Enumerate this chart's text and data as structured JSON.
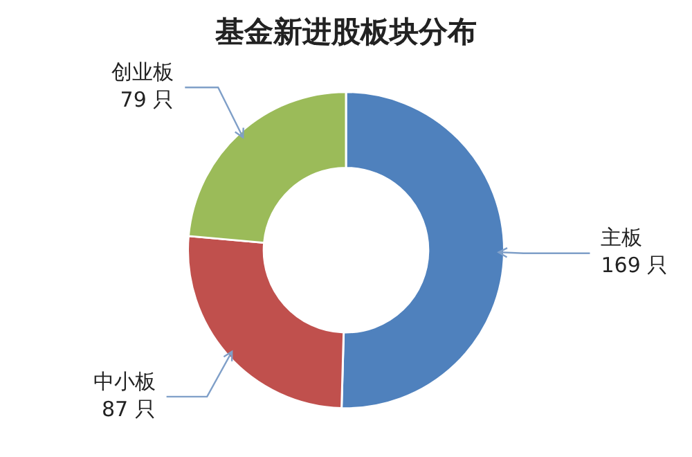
{
  "chart_data": {
    "type": "donut",
    "title": "基金新进股板块分布",
    "categories": [
      "主板",
      "中小板",
      "创业板"
    ],
    "values": [
      169,
      87,
      79
    ],
    "value_labels": [
      "169 只",
      "87 只",
      "79 只"
    ],
    "colors": [
      "#4f81bd",
      "#c0504d",
      "#9bbb59"
    ],
    "legend": false
  }
}
